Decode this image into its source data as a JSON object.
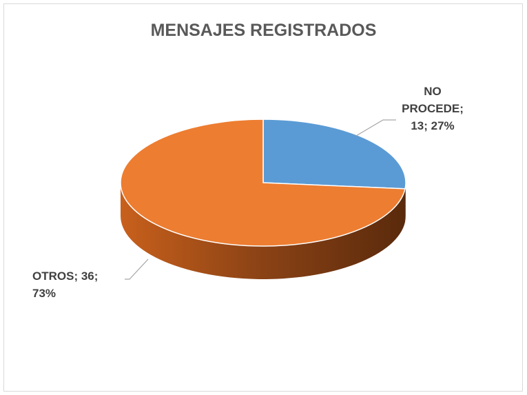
{
  "chart_data": {
    "type": "pie3d",
    "title": "MENSAJES REGISTRADOS",
    "categories": [
      "NO PROCEDE",
      "OTROS"
    ],
    "values": [
      13,
      36
    ],
    "percents": [
      27,
      73
    ],
    "percent_labels": [
      "27%",
      "73%"
    ],
    "label_separator": "; ",
    "colors": [
      "#5B9BD5",
      "#ED7D31"
    ]
  }
}
